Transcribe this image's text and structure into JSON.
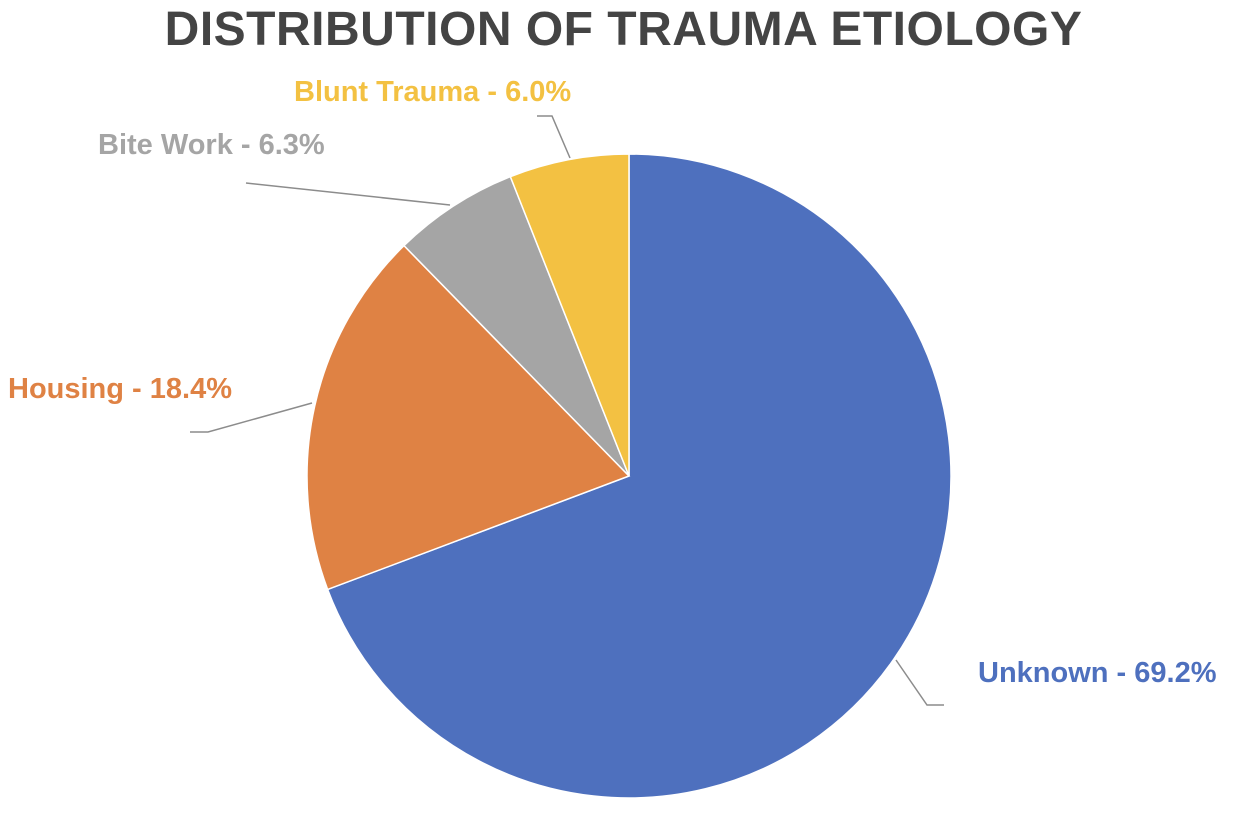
{
  "chart_data": {
    "type": "pie",
    "title": "DISTRIBUTION OF TRAUMA ETIOLOGY",
    "start_angle_deg": 0,
    "direction": "clockwise",
    "slices": [
      {
        "name": "Unknown",
        "value": 69.2,
        "label": "Unknown - 69.2%",
        "color": "#4e70be"
      },
      {
        "name": "Housing",
        "value": 18.4,
        "label": "Housing - 18.4%",
        "color": "#df8244"
      },
      {
        "name": "Bite Work",
        "value": 6.3,
        "label": "Bite Work - 6.3%",
        "color": "#a5a5a5"
      },
      {
        "name": "Blunt Trauma",
        "value": 6.0,
        "label": "Blunt Trauma - 6.0%",
        "color": "#f3c142"
      }
    ]
  }
}
